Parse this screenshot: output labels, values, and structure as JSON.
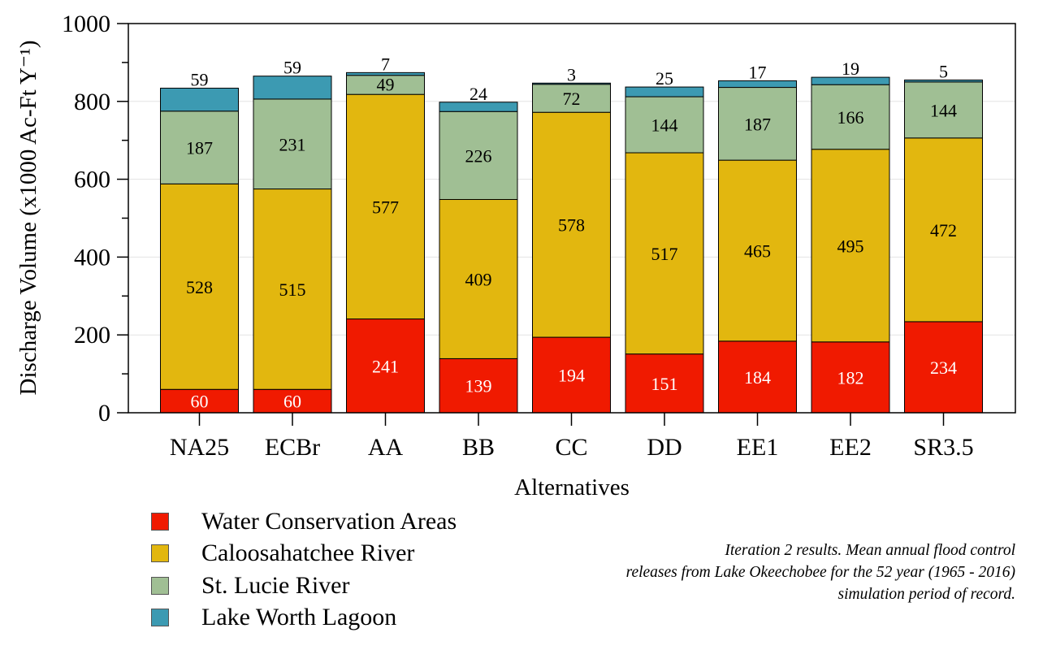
{
  "chart_data": {
    "type": "bar",
    "stacked": true,
    "title": "",
    "xlabel": "Alternatives",
    "ylabel": "Discharge Volume (x1000 Ac-Ft Y⁻¹)",
    "ylim": [
      0,
      1000
    ],
    "yticks": [
      "0",
      "200",
      "400",
      "600",
      "800",
      "1000"
    ],
    "grid": true,
    "legend_position": "bottom-left",
    "categories": [
      "NA25",
      "ECBr",
      "AA",
      "BB",
      "CC",
      "DD",
      "EE1",
      "EE2",
      "SR3.5"
    ],
    "series": [
      {
        "name": "Water Conservation Areas",
        "color": "#f01a00",
        "label_color": "#ffffff",
        "values": [
          60,
          60,
          241,
          139,
          194,
          151,
          184,
          182,
          234
        ]
      },
      {
        "name": "Caloosahatchee River",
        "color": "#e2b70f",
        "label_color": "#000000",
        "values": [
          528,
          515,
          577,
          409,
          578,
          517,
          465,
          495,
          472
        ]
      },
      {
        "name": "St. Lucie River",
        "color": "#a0bf94",
        "label_color": "#000000",
        "values": [
          187,
          231,
          49,
          226,
          72,
          144,
          187,
          166,
          144
        ]
      },
      {
        "name": "Lake Worth Lagoon",
        "color": "#3c9ab2",
        "label_color": "#000000",
        "values": [
          59,
          59,
          7,
          24,
          3,
          25,
          17,
          19,
          5
        ]
      }
    ]
  },
  "caption": {
    "lines": [
      "Iteration 2 results. Mean annual flood control",
      "releases from Lake Okeechobee for the 52 year (1965 - 2016)",
      "simulation period of record."
    ]
  }
}
